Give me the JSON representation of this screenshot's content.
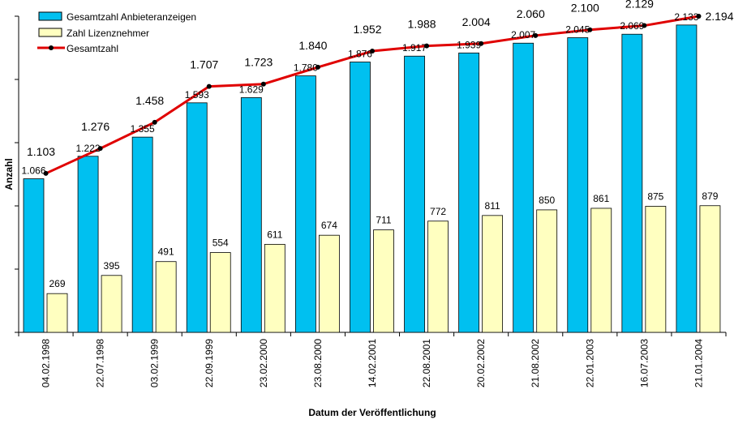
{
  "chart_data": {
    "type": "bar",
    "xlabel": "Datum der Veröffentlichung",
    "ylabel": "Anzahl",
    "ylim": [
      0,
      2194
    ],
    "grid": false,
    "legend_position": "top-left",
    "categories": [
      "04.02.1998",
      "22.07.1998",
      "03.02.1999",
      "22.09.1999",
      "23.02.2000",
      "23.08.2000",
      "14.02.2001",
      "22.08.2001",
      "20.02.2002",
      "21.08.2002",
      "22.01.2003",
      "16.07.2003",
      "21.01.2004"
    ],
    "series": [
      {
        "name": "Gesamtzahl Anbieteranzeigen",
        "type": "bar",
        "color": "#00C0F0",
        "values": [
          1066,
          1222,
          1355,
          1593,
          1629,
          1780,
          1876,
          1917,
          1939,
          2007,
          2045,
          2069,
          2133
        ],
        "labels": [
          "1.066",
          "1.222",
          "1.355",
          "1.593",
          "1.629",
          "1.780",
          "1.876",
          "1.917",
          "1.939",
          "2.007",
          "2.045",
          "2.069",
          "2.133"
        ]
      },
      {
        "name": "Zahl Lizenznehmer",
        "type": "bar",
        "color": "#FFFFC0",
        "values": [
          269,
          395,
          491,
          554,
          611,
          674,
          711,
          772,
          811,
          850,
          861,
          875,
          879
        ],
        "labels": [
          "269",
          "395",
          "491",
          "554",
          "611",
          "674",
          "711",
          "772",
          "811",
          "850",
          "861",
          "875",
          "879"
        ]
      },
      {
        "name": "Gesamtzahl",
        "type": "line",
        "color": "#E00000",
        "values": [
          1103,
          1276,
          1458,
          1707,
          1723,
          1840,
          1952,
          1988,
          2004,
          2060,
          2100,
          2129,
          2194
        ],
        "labels": [
          "1.103",
          "1.276",
          "1.458",
          "1.707",
          "1.723",
          "1.840",
          "1.952",
          "1.988",
          "2.004",
          "2.060",
          "2.100",
          "2.129",
          "2.194"
        ]
      }
    ]
  }
}
